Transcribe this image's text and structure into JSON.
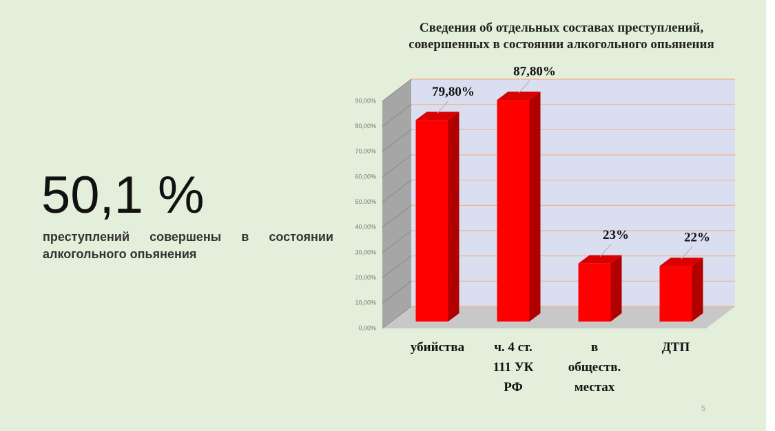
{
  "headline": "50,1 %",
  "description": "преступлений совершены в состоянии алкогольного опьянения",
  "page_number": "5",
  "chart_data": {
    "type": "bar",
    "title": [
      "Сведения об отдельных составах преступлений,",
      "совершенных в состоянии алкогольного опьянения"
    ],
    "categories": [
      "убийства",
      "ч. 4 ст. 111 УК РФ",
      "в обществ. местах",
      "ДТП"
    ],
    "values": [
      79.8,
      87.8,
      23,
      22
    ],
    "value_labels": [
      "79,80%",
      "87,80%",
      "23%",
      "22%"
    ],
    "color": "#ff0000",
    "ylim": [
      0,
      90
    ],
    "yticks": [
      {
        "value": 0,
        "label": "0,00%"
      },
      {
        "value": 10,
        "label": "10,00%"
      },
      {
        "value": 20,
        "label": "20,00%"
      },
      {
        "value": 30,
        "label": "30,00%"
      },
      {
        "value": 40,
        "label": "40,00%"
      },
      {
        "value": 50,
        "label": "50,00%"
      },
      {
        "value": 60,
        "label": "60,00%"
      },
      {
        "value": 70,
        "label": "70,00%"
      },
      {
        "value": 80,
        "label": "80,00%"
      },
      {
        "value": 90,
        "label": "90,00%"
      }
    ],
    "grid": true
  }
}
